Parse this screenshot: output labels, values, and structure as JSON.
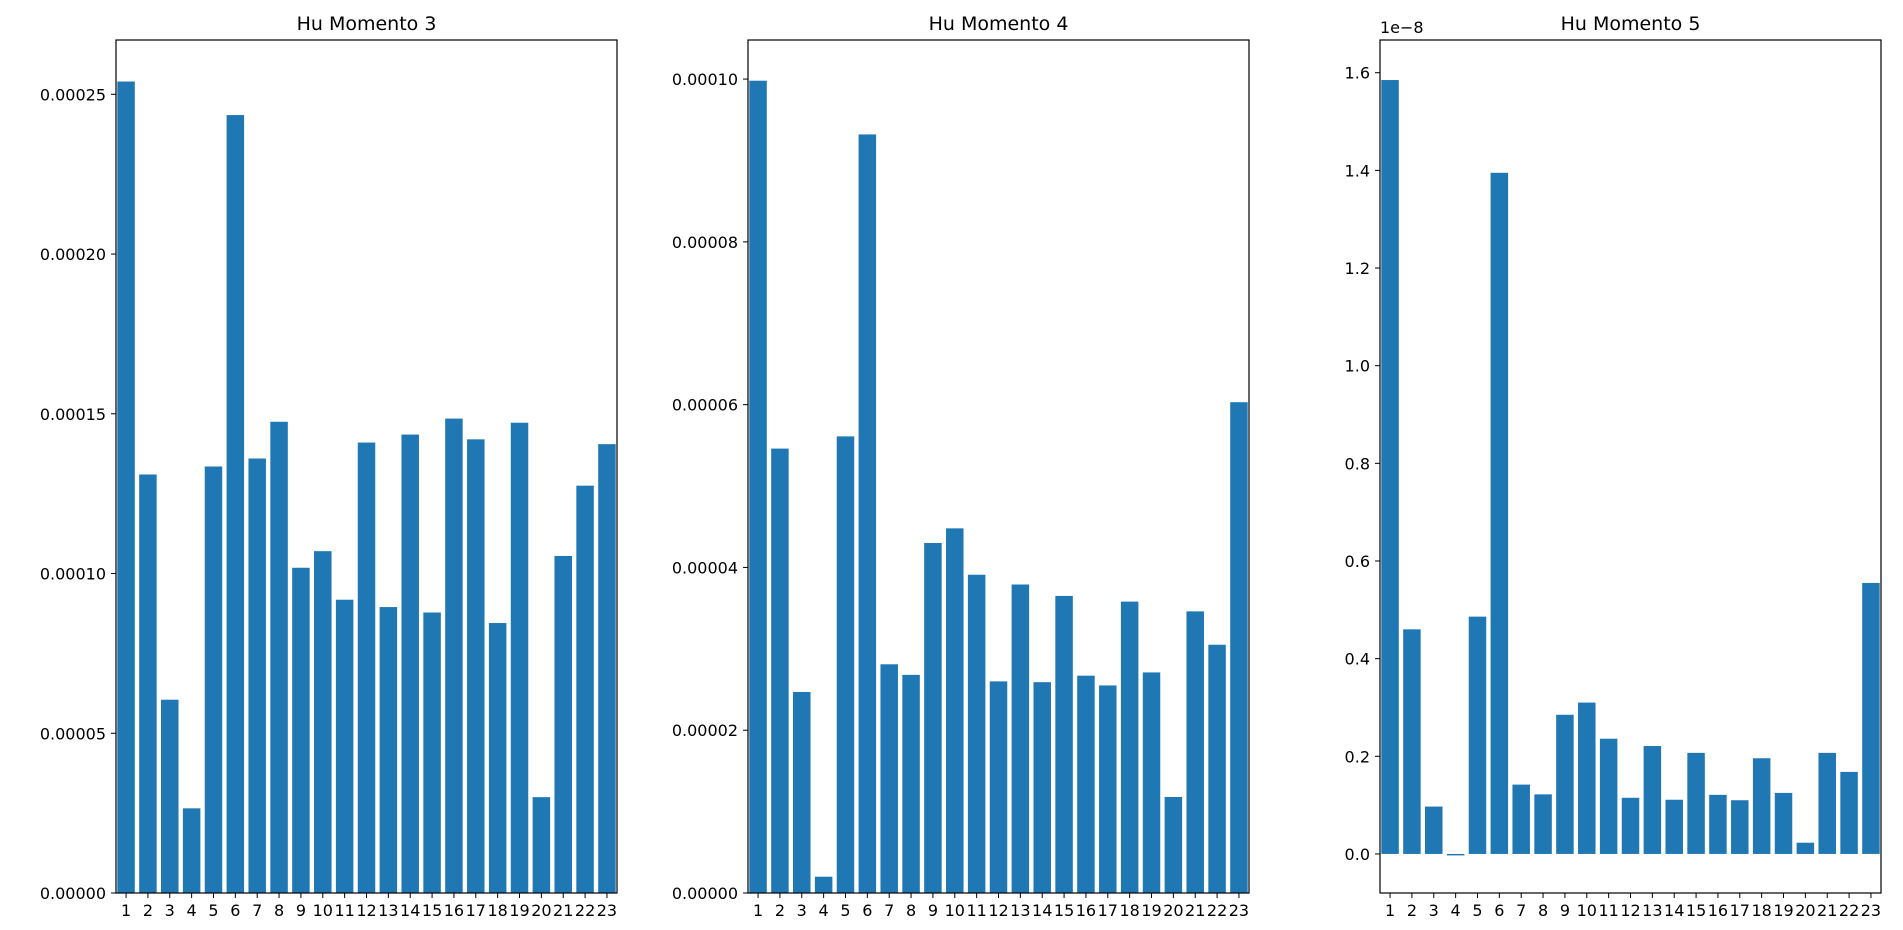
{
  "figure": {
    "background": "#ffffff",
    "bar_color": "#1f77b4"
  },
  "chart_data": [
    {
      "type": "bar",
      "title": "Hu Momento 3",
      "categories": [
        "1",
        "2",
        "3",
        "4",
        "5",
        "6",
        "7",
        "8",
        "9",
        "10",
        "11",
        "12",
        "13",
        "14",
        "15",
        "16",
        "17",
        "18",
        "19",
        "20",
        "21",
        "22",
        "23"
      ],
      "values": [
        0.000254,
        0.000131,
        6.05e-05,
        2.65e-05,
        0.0001335,
        0.0002435,
        0.000136,
        0.0001475,
        0.0001018,
        0.000107,
        9.18e-05,
        0.000141,
        8.95e-05,
        0.0001435,
        8.78e-05,
        0.0001485,
        0.000142,
        8.45e-05,
        0.0001472,
        3e-05,
        0.0001055,
        0.0001275,
        0.0001405
      ],
      "yticks": [
        "0.00000",
        "0.00005",
        "0.00010",
        "0.00015",
        "0.00020",
        "0.00025"
      ],
      "ytick_values": [
        0,
        5e-05,
        0.0001,
        0.00015,
        0.0002,
        0.00025
      ],
      "ylim": [
        0,
        0.000267
      ],
      "offset_text": "",
      "xlabel": "",
      "ylabel": "",
      "grid": false
    },
    {
      "type": "bar",
      "title": "Hu Momento 4",
      "categories": [
        "1",
        "2",
        "3",
        "4",
        "5",
        "6",
        "7",
        "8",
        "9",
        "10",
        "11",
        "12",
        "13",
        "14",
        "15",
        "16",
        "17",
        "18",
        "19",
        "20",
        "21",
        "22",
        "23"
      ],
      "values": [
        9.98e-05,
        5.46e-05,
        2.47e-05,
        2e-06,
        5.61e-05,
        9.32e-05,
        2.81e-05,
        2.68e-05,
        4.3e-05,
        4.48e-05,
        3.91e-05,
        2.6e-05,
        3.79e-05,
        2.59e-05,
        3.65e-05,
        2.67e-05,
        2.55e-05,
        3.58e-05,
        2.71e-05,
        1.18e-05,
        3.46e-05,
        3.05e-05,
        6.03e-05
      ],
      "yticks": [
        "0.00000",
        "0.00002",
        "0.00004",
        "0.00006",
        "0.00008",
        "0.00010"
      ],
      "ytick_values": [
        0,
        2e-05,
        4e-05,
        6e-05,
        8e-05,
        0.0001
      ],
      "ylim": [
        0,
        0.0001048
      ],
      "offset_text": "",
      "xlabel": "",
      "ylabel": "",
      "grid": false
    },
    {
      "type": "bar",
      "title": "Hu Momento 5",
      "categories": [
        "1",
        "2",
        "3",
        "4",
        "5",
        "6",
        "7",
        "8",
        "9",
        "10",
        "11",
        "12",
        "13",
        "14",
        "15",
        "16",
        "17",
        "18",
        "19",
        "20",
        "21",
        "22",
        "23"
      ],
      "values": [
        1.585,
        0.46,
        0.097,
        -0.003,
        0.486,
        1.395,
        0.142,
        0.122,
        0.285,
        0.31,
        0.236,
        0.115,
        0.221,
        0.111,
        0.207,
        0.121,
        0.11,
        0.196,
        0.125,
        0.023,
        0.207,
        0.168,
        0.555
      ],
      "yticks": [
        "0.0",
        "0.2",
        "0.4",
        "0.6",
        "0.8",
        "1.0",
        "1.2",
        "1.4",
        "1.6"
      ],
      "ytick_values": [
        0,
        0.2,
        0.4,
        0.6,
        0.8,
        1.0,
        1.2,
        1.4,
        1.6
      ],
      "ylim": [
        -0.08,
        1.667
      ],
      "offset_text": "1e−8",
      "xlabel": "",
      "ylabel": "",
      "grid": false
    }
  ]
}
